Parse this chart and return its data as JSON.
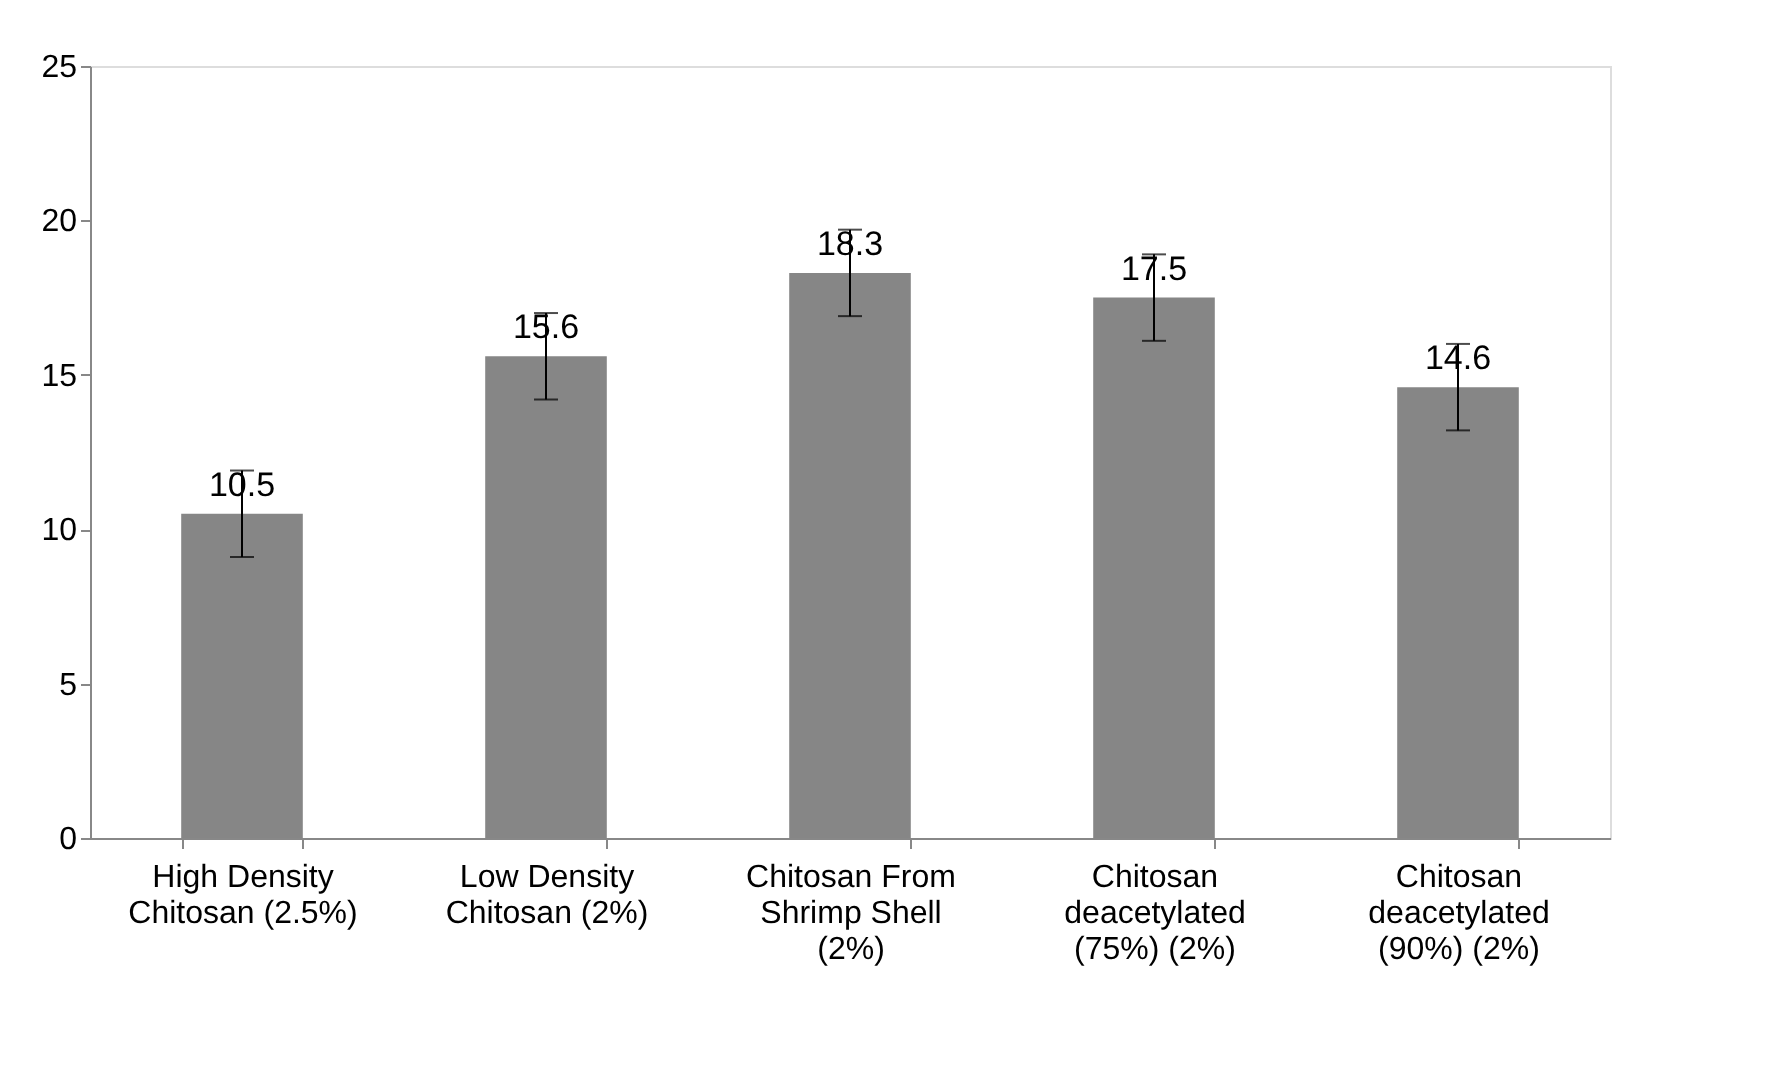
{
  "chart_data": {
    "type": "bar",
    "categories": [
      "High Density\nChitosan (2.5%)",
      "Low Density\nChitosan (2%)",
      "Chitosan From\nShrimp Shell\n(2%)",
      "Chitosan\ndeacetylated\n(75%) (2%)",
      "Chitosan\ndeacetylated\n(90%) (2%)"
    ],
    "values": [
      10.5,
      15.6,
      18.3,
      17.5,
      14.6
    ],
    "errors": [
      1.4,
      1.4,
      1.4,
      1.4,
      1.4
    ],
    "color": "#868686",
    "ylim": [
      0,
      25
    ],
    "yticks": [
      0,
      5,
      10,
      15,
      20,
      25
    ],
    "grid": false,
    "data_labels": true
  }
}
